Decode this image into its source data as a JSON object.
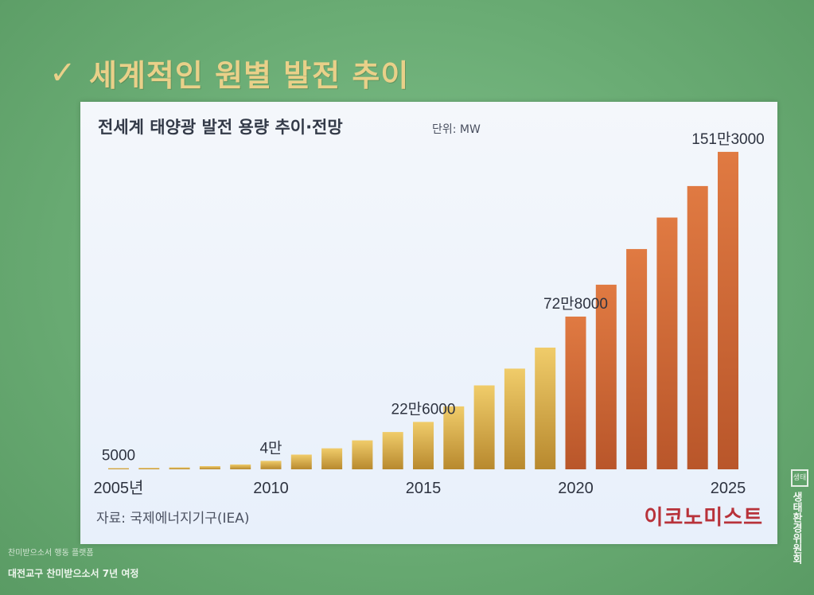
{
  "slide": {
    "check_glyph": "✓",
    "title": "세계적인 원별 발전 추이"
  },
  "chart_header": {
    "title": "전세계 태양광 발전 용량 추이·전망",
    "unit": "단위: MW"
  },
  "source": "자료: 국제에너지기구(IEA)",
  "brand": "이코노미스트",
  "footer": {
    "line1": "찬미받으소서 행동 플랫폼",
    "line2": "대전교구 찬미받으소서 7년 여정"
  },
  "side_logo": {
    "mark_text": "생태",
    "text": "생태환경위원회"
  },
  "colors": {
    "gold_top": "#f0cc6a",
    "gold_bottom": "#b8892e",
    "orange_top": "#e07a42",
    "orange_bottom": "#b9562a",
    "accent_red": "#b8323a"
  },
  "chart_data": {
    "type": "bar",
    "title": "전세계 태양광 발전 용량 추이·전망",
    "unit": "MW",
    "categories": [
      2005,
      2006,
      2007,
      2008,
      2009,
      2010,
      2011,
      2012,
      2013,
      2014,
      2015,
      2016,
      2017,
      2018,
      2019,
      2020,
      2021,
      2022,
      2023,
      2024,
      2025
    ],
    "values": [
      5000,
      7000,
      9000,
      15000,
      23000,
      40000,
      70000,
      100000,
      138000,
      178000,
      226000,
      300000,
      400000,
      480000,
      580000,
      728000,
      880000,
      1050000,
      1200000,
      1350000,
      1513000
    ],
    "ylim": [
      0,
      1600000
    ],
    "x_tick_labels": [
      {
        "year": 2005,
        "label": "2005년"
      },
      {
        "year": 2010,
        "label": "2010"
      },
      {
        "year": 2015,
        "label": "2015"
      },
      {
        "year": 2020,
        "label": "2020"
      },
      {
        "year": 2025,
        "label": "2025"
      }
    ],
    "data_labels": [
      {
        "year": 2005,
        "label": "5000"
      },
      {
        "year": 2010,
        "label": "4만"
      },
      {
        "year": 2015,
        "label": "22만6000"
      },
      {
        "year": 2020,
        "label": "72만8000"
      },
      {
        "year": 2025,
        "label": "151만3000"
      }
    ],
    "forecast_from": 2020,
    "grid": false,
    "legend": "none"
  }
}
